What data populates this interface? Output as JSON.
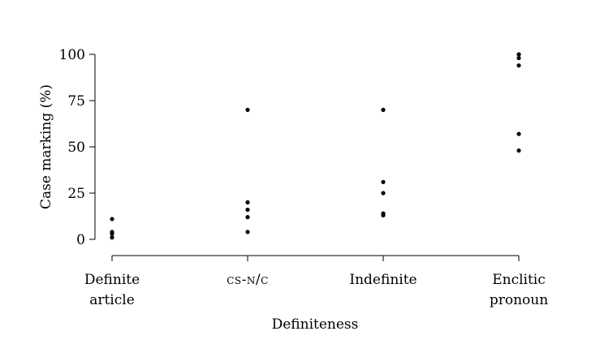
{
  "chart_data": {
    "type": "scatter",
    "title": "",
    "xlabel": "Definiteness",
    "ylabel": "Case marking (%)",
    "ylim": [
      0,
      100
    ],
    "yticks": [
      0,
      25,
      50,
      75,
      100
    ],
    "grid": false,
    "legend": "none",
    "categories": [
      {
        "lines": [
          "Definite",
          "article"
        ],
        "smallcaps": false
      },
      {
        "lines": [
          "cs-n/c"
        ],
        "smallcaps": true
      },
      {
        "lines": [
          "Indefinite"
        ],
        "smallcaps": false
      },
      {
        "lines": [
          "Enclitic",
          "pronoun"
        ],
        "smallcaps": false
      }
    ],
    "series": [
      {
        "values": [
          [
            11,
            4,
            3,
            1
          ],
          [
            70,
            20,
            16,
            12,
            4
          ],
          [
            70,
            31,
            25,
            14,
            13
          ],
          [
            100,
            98,
            94,
            57,
            48
          ]
        ]
      }
    ]
  }
}
